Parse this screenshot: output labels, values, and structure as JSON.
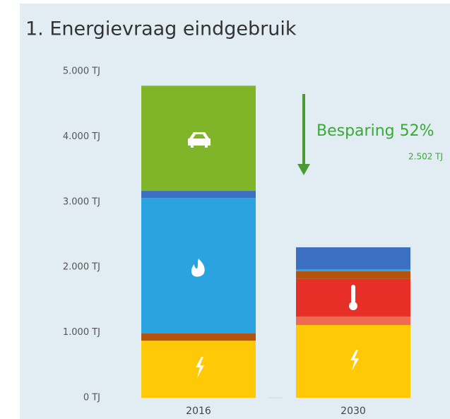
{
  "chart_data": {
    "type": "stacked_bar",
    "title": "1. Energievraag eindgebruik",
    "categories": [
      "2016",
      "2030"
    ],
    "series": [
      {
        "color": "#ffc907",
        "values": [
          875,
          1115
        ]
      },
      {
        "color": "#ee6a50",
        "values": [
          null,
          130
        ]
      },
      {
        "color": "#e63027",
        "values": [
          null,
          575
        ]
      },
      {
        "color": "#b5520e",
        "values": [
          110,
          120
        ]
      },
      {
        "color": "#2ba3e0",
        "values": [
          2075,
          30
        ]
      },
      {
        "color": "#3a6fc4",
        "values": [
          110,
          335
        ]
      },
      {
        "color": "#80b52a",
        "values": [
          1610,
          null
        ]
      }
    ],
    "ylim": [
      0,
      5000
    ],
    "yticks": [
      {
        "value": 0,
        "label": "0 TJ"
      },
      {
        "value": 1000,
        "label": "1.000 TJ"
      },
      {
        "value": 2000,
        "label": "2.000 TJ"
      },
      {
        "value": 3000,
        "label": "3.000 TJ"
      },
      {
        "value": 4000,
        "label": "4.000 TJ"
      },
      {
        "value": 5000,
        "label": "5.000 TJ"
      }
    ],
    "annotations": [
      "Besparing 52%",
      "2.502 TJ"
    ]
  }
}
